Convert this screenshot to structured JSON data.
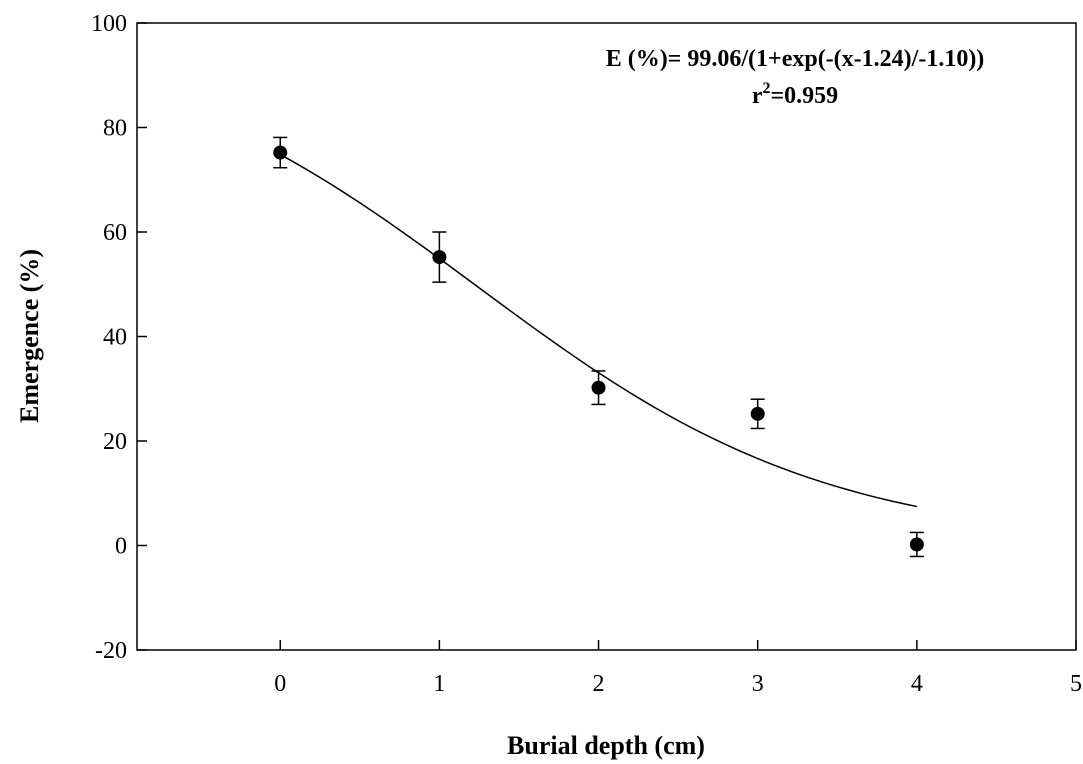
{
  "chart_data": {
    "type": "scatter",
    "title": "",
    "xlabel": "Burial depth (cm)",
    "ylabel": "Emergence (%)",
    "xlim": [
      -0.9,
      5
    ],
    "ylim": [
      -20,
      100
    ],
    "x_ticks": [
      0,
      1,
      2,
      3,
      4,
      5
    ],
    "y_ticks": [
      -20,
      0,
      20,
      40,
      60,
      80,
      100
    ],
    "x_tick_labels": [
      "0",
      "1",
      "2",
      "3",
      "4",
      "5"
    ],
    "y_tick_labels": [
      "-20",
      "0",
      "20",
      "40",
      "60",
      "80",
      "100"
    ],
    "grid": false,
    "series": [
      {
        "x": [
          0,
          1,
          2,
          3,
          4
        ],
        "y": [
          75.2,
          55.2,
          30.2,
          25.2,
          0.2
        ],
        "error": [
          2.9,
          4.8,
          3.2,
          2.8,
          2.3
        ],
        "marker": "filled-circle",
        "color": "#000000"
      }
    ],
    "fit": {
      "equation": "E (%)= 99.06/(1+exp(-(x-1.24)/-1.10))",
      "r2_label": "r",
      "r2_sup": "2",
      "r2_value": "=0.959",
      "a": 99.06,
      "x0": 1.24,
      "b": -1.1,
      "x_range": [
        0,
        4
      ],
      "color": "#000000"
    }
  }
}
